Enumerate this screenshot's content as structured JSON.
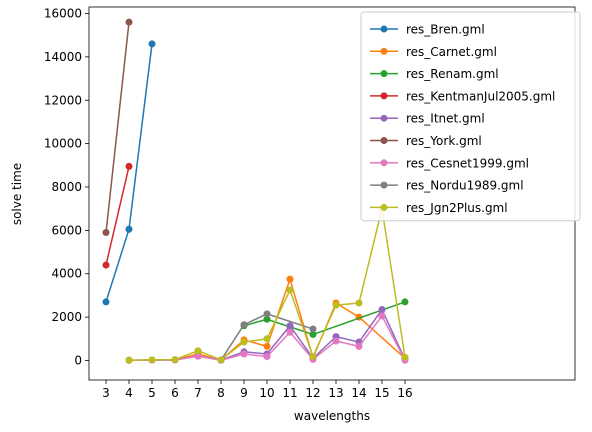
{
  "chart_data": {
    "type": "line",
    "xlabel": "wavelengths",
    "ylabel": "solve time",
    "categories": [
      "3",
      "4",
      "5",
      "6",
      "7",
      "8",
      "9",
      "10",
      "11",
      "12",
      "13",
      "14",
      "15",
      "16"
    ],
    "ylim": [
      -900,
      16300
    ],
    "yticks": [
      0,
      2000,
      4000,
      6000,
      8000,
      10000,
      12000,
      14000,
      16000
    ],
    "grid": false,
    "legend_position": "top-right",
    "series": [
      {
        "name": "res_Bren.gml",
        "color": "#1f77b4",
        "points": [
          [
            "3",
            2700
          ],
          [
            "4",
            6050
          ],
          [
            "5",
            14600
          ]
        ]
      },
      {
        "name": "res_Carnet.gml",
        "color": "#ff7f0e",
        "points": [
          [
            "4",
            10
          ],
          [
            "5",
            20
          ],
          [
            "6",
            30
          ],
          [
            "7",
            300
          ],
          [
            "8",
            20
          ],
          [
            "9",
            950
          ],
          [
            "10",
            650
          ],
          [
            "11",
            3750
          ],
          [
            "12",
            120
          ],
          [
            "13",
            2650
          ],
          [
            "14",
            2000
          ],
          [
            "16",
            100
          ]
        ]
      },
      {
        "name": "res_Renam.gml",
        "color": "#2ca02c",
        "points": [
          [
            "9",
            1600
          ],
          [
            "10",
            1900
          ],
          [
            "11",
            1550
          ],
          [
            "12",
            1200
          ],
          [
            "16",
            2700
          ]
        ]
      },
      {
        "name": "res_KentmanJul2005.gml",
        "color": "#d62728",
        "points": [
          [
            "3",
            4400
          ],
          [
            "4",
            8950
          ]
        ]
      },
      {
        "name": "res_Itnet.gml",
        "color": "#9467bd",
        "points": [
          [
            "4",
            10
          ],
          [
            "5",
            20
          ],
          [
            "6",
            20
          ],
          [
            "7",
            200
          ],
          [
            "8",
            20
          ],
          [
            "9",
            400
          ],
          [
            "10",
            300
          ],
          [
            "11",
            1600
          ],
          [
            "12",
            100
          ],
          [
            "13",
            1100
          ],
          [
            "14",
            850
          ],
          [
            "15",
            2350
          ],
          [
            "16",
            50
          ]
        ]
      },
      {
        "name": "res_York.gml",
        "color": "#8c564b",
        "points": [
          [
            "3",
            5900
          ],
          [
            "4",
            15600
          ]
        ]
      },
      {
        "name": "res_Cesnet1999.gml",
        "color": "#e377c2",
        "points": [
          [
            "4",
            10
          ],
          [
            "5",
            15
          ],
          [
            "6",
            20
          ],
          [
            "7",
            200
          ],
          [
            "8",
            10
          ],
          [
            "9",
            300
          ],
          [
            "10",
            180
          ],
          [
            "11",
            1300
          ],
          [
            "12",
            50
          ],
          [
            "13",
            900
          ],
          [
            "14",
            650
          ],
          [
            "15",
            2050
          ],
          [
            "16",
            10
          ]
        ]
      },
      {
        "name": "res_Nordu1989.gml",
        "color": "#7f7f7f",
        "points": [
          [
            "8",
            20
          ],
          [
            "9",
            1650
          ],
          [
            "10",
            2150
          ],
          [
            "12",
            1450
          ]
        ]
      },
      {
        "name": "res_Jgn2Plus.gml",
        "color": "#bcbd22",
        "points": [
          [
            "4",
            10
          ],
          [
            "5",
            30
          ],
          [
            "6",
            40
          ],
          [
            "7",
            450
          ],
          [
            "8",
            30
          ],
          [
            "9",
            850
          ],
          [
            "10",
            1000
          ],
          [
            "11",
            3250
          ],
          [
            "12",
            180
          ],
          [
            "13",
            2550
          ],
          [
            "14",
            2650
          ],
          [
            "15",
            7000
          ],
          [
            "16",
            150
          ]
        ]
      }
    ]
  }
}
